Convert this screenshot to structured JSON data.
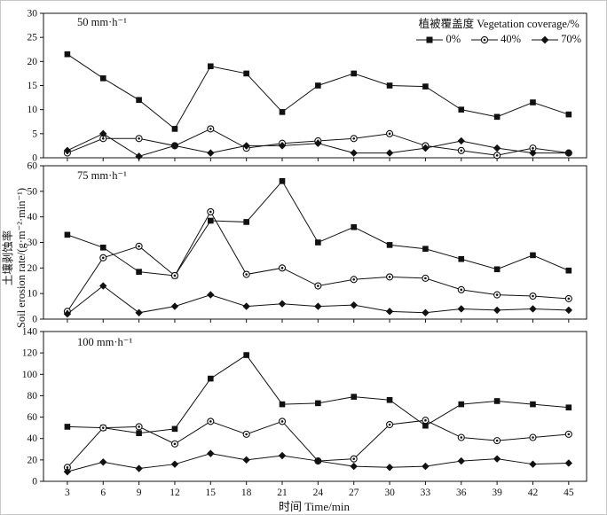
{
  "figure": {
    "ylabel_cn": "土壤剥蚀率",
    "ylabel_en": "Soil erosion rate/(g·m⁻²·min⁻¹)",
    "xlabel": "时间 Time/min",
    "legend_title": "植被覆盖度 Vegetation coverage/%"
  },
  "chart_data": [
    {
      "type": "line",
      "title": "50 mm·h⁻¹",
      "x": [
        3,
        6,
        9,
        12,
        15,
        18,
        21,
        24,
        27,
        30,
        33,
        36,
        39,
        42,
        45
      ],
      "ylim": [
        0,
        30
      ],
      "ytick": 5,
      "legend_position": "top-right",
      "grid": false,
      "series": [
        {
          "name": "0%",
          "marker": "square",
          "values": [
            21.5,
            16.5,
            12,
            6,
            19,
            17.5,
            9.5,
            15,
            17.5,
            15,
            14.8,
            10,
            8.5,
            11.5,
            9
          ]
        },
        {
          "name": "40%",
          "marker": "circle",
          "values": [
            1,
            4,
            4,
            2.5,
            6,
            2,
            3,
            3.5,
            4,
            5,
            2.5,
            1.5,
            0.5,
            2,
            1
          ]
        },
        {
          "name": "70%",
          "marker": "diamond",
          "values": [
            1.5,
            5,
            0.3,
            2.5,
            1,
            2.5,
            2.5,
            3,
            1,
            1,
            2,
            3.5,
            2,
            1,
            1
          ]
        }
      ]
    },
    {
      "type": "line",
      "title": "75 mm·h⁻¹",
      "x": [
        3,
        6,
        9,
        12,
        15,
        18,
        21,
        24,
        27,
        30,
        33,
        36,
        39,
        42,
        45
      ],
      "ylim": [
        0,
        60
      ],
      "ytick": 10,
      "grid": false,
      "series": [
        {
          "name": "0%",
          "marker": "square",
          "values": [
            33,
            28,
            18.5,
            17,
            38.5,
            38,
            54,
            30,
            36,
            29,
            27.5,
            23.5,
            19.5,
            25,
            19
          ]
        },
        {
          "name": "40%",
          "marker": "circle",
          "values": [
            3,
            24,
            28.5,
            17,
            42,
            17.5,
            20,
            13,
            15.5,
            16.5,
            16,
            11.5,
            9.5,
            9,
            8
          ]
        },
        {
          "name": "70%",
          "marker": "diamond",
          "values": [
            2,
            13,
            2.5,
            5,
            9.5,
            5,
            6,
            5,
            5.5,
            3,
            2.5,
            4,
            3.5,
            4,
            3.5
          ]
        }
      ]
    },
    {
      "type": "line",
      "title": "100 mm·h⁻¹",
      "x": [
        3,
        6,
        9,
        12,
        15,
        18,
        21,
        24,
        27,
        30,
        33,
        36,
        39,
        42,
        45
      ],
      "ylim": [
        0,
        140
      ],
      "ytick": 20,
      "grid": false,
      "series": [
        {
          "name": "0%",
          "marker": "square",
          "values": [
            51,
            50,
            45,
            49,
            96,
            118,
            72,
            73,
            79,
            76,
            52,
            72,
            75,
            72,
            69
          ]
        },
        {
          "name": "40%",
          "marker": "circle",
          "values": [
            13,
            50,
            51,
            35,
            56,
            44,
            56,
            19,
            21,
            53,
            57,
            41,
            38,
            41,
            44
          ]
        },
        {
          "name": "70%",
          "marker": "diamond",
          "values": [
            9,
            18,
            12,
            16,
            26,
            20,
            24,
            19,
            14,
            13,
            14,
            19,
            21,
            16,
            17
          ]
        }
      ]
    }
  ]
}
